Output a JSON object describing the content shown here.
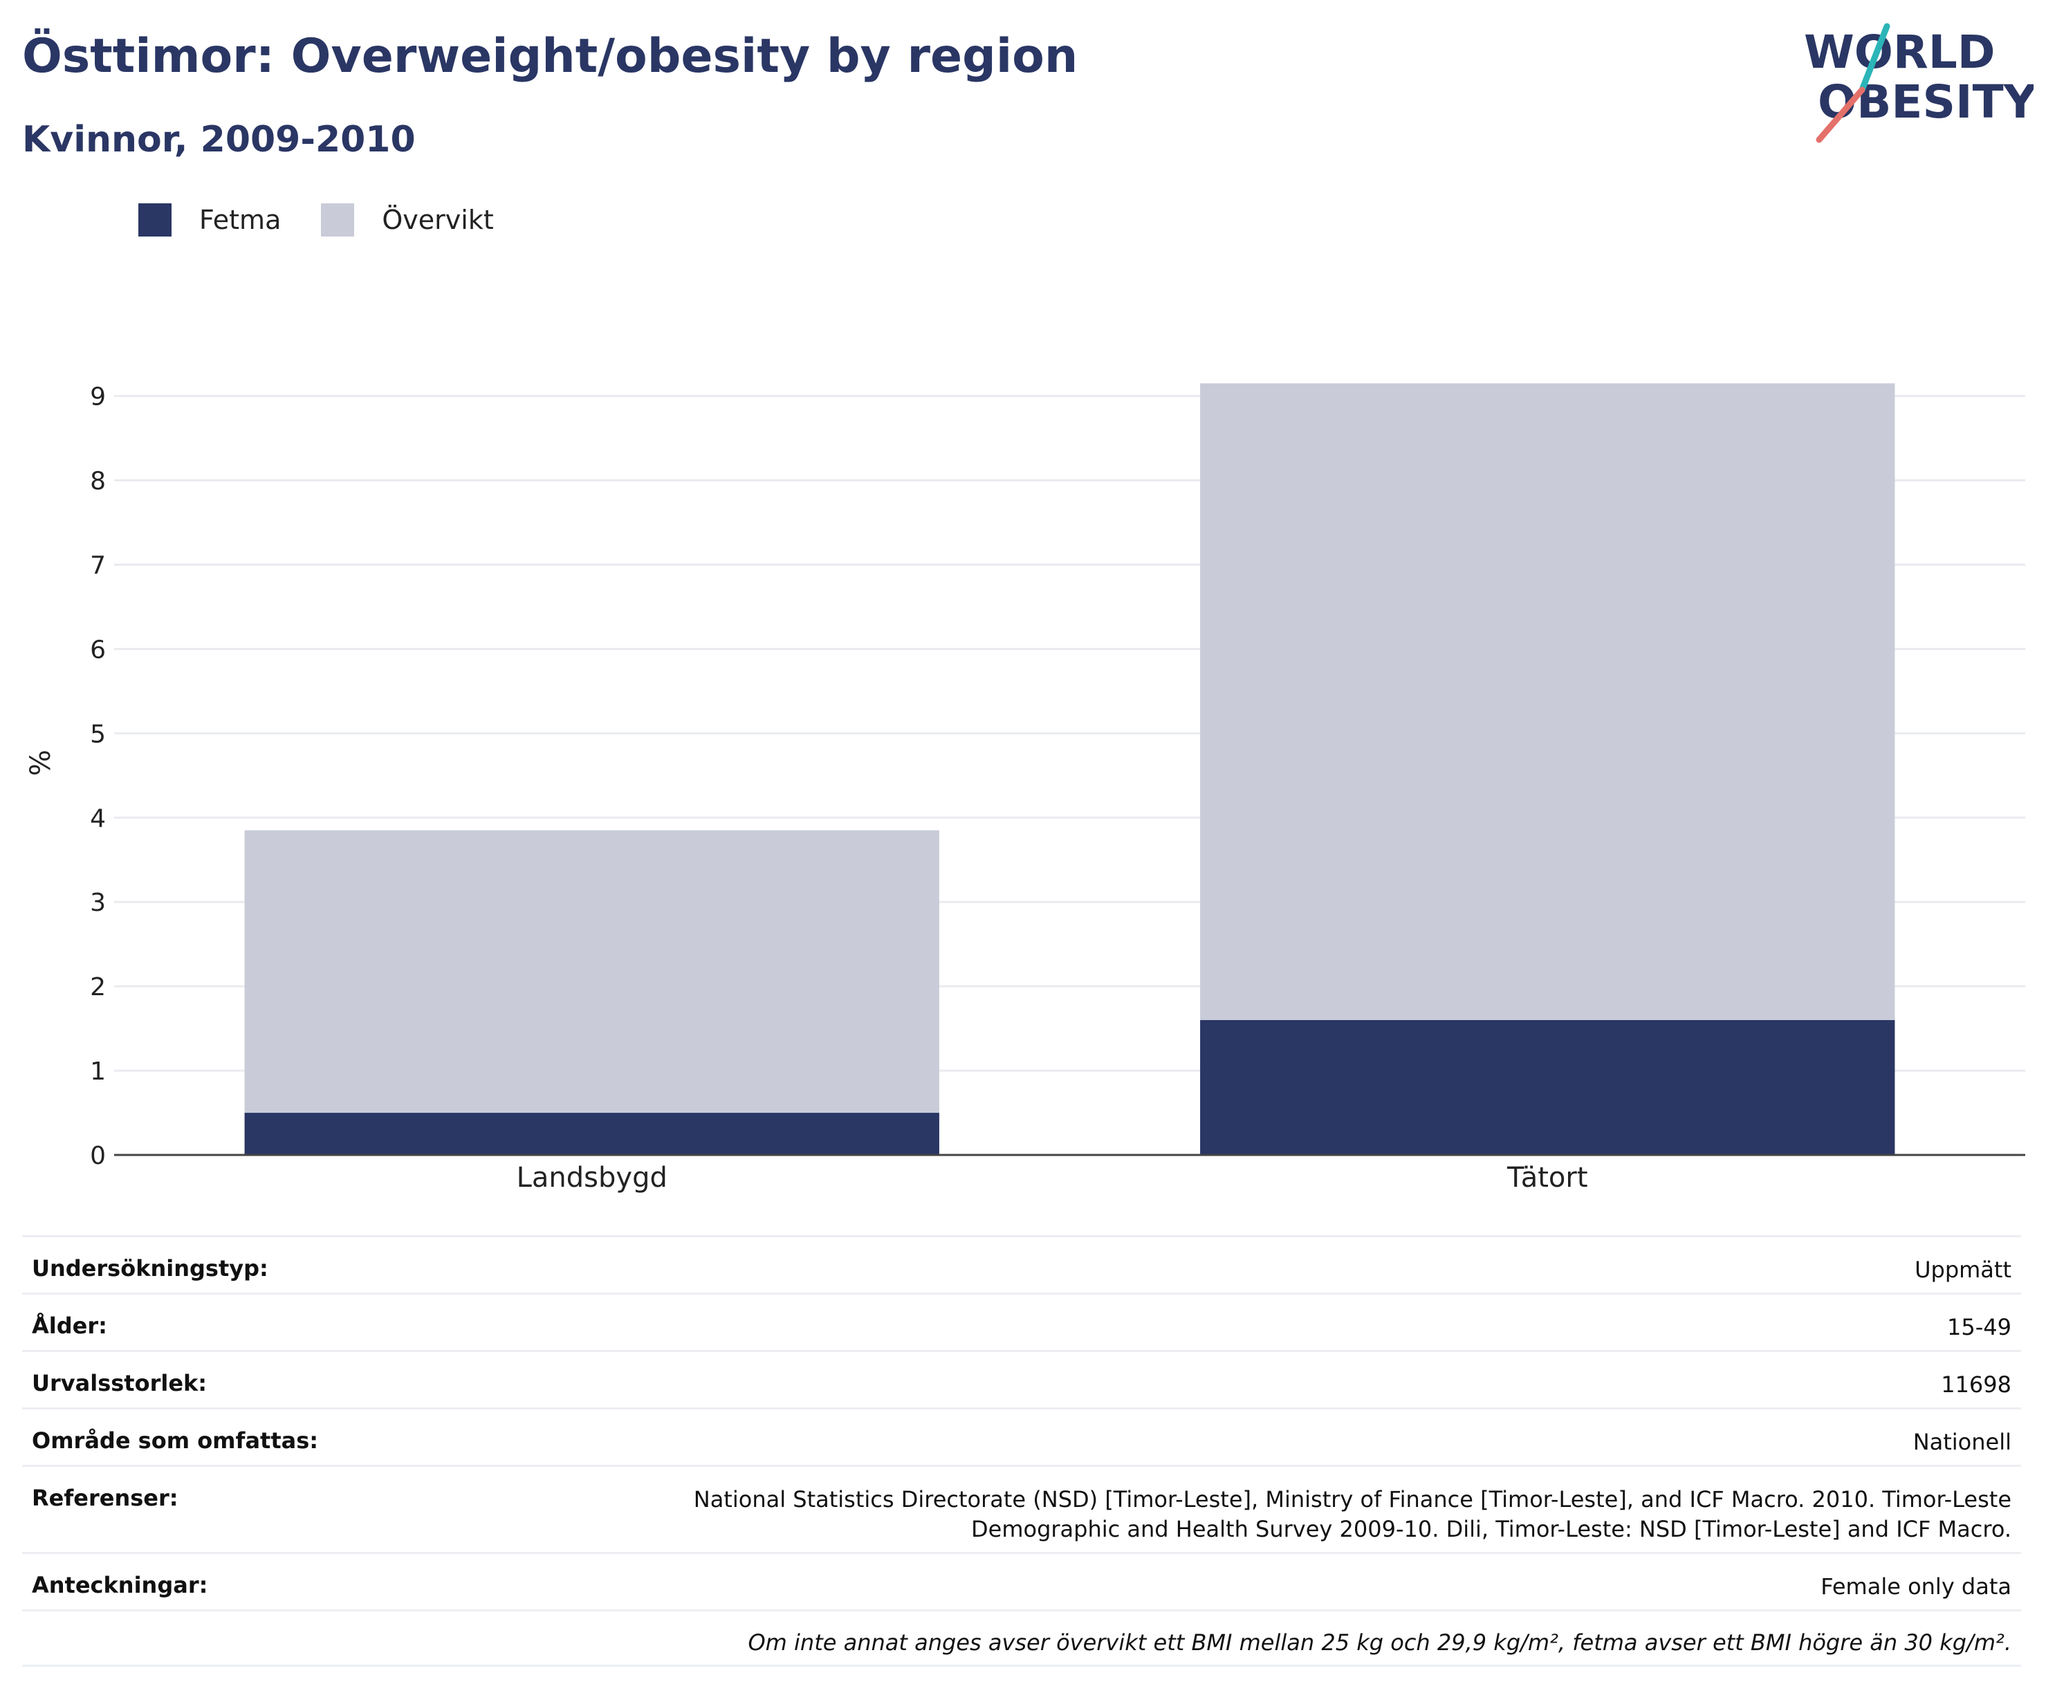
{
  "title": "Östtimor: Overweight/obesity by region",
  "subtitle": "Kvinnor, 2009-2010",
  "logo": {
    "line1": "WORLD",
    "line2": "OBESITY",
    "accent_colors": [
      "#2bb5b8",
      "#e4706a"
    ],
    "text_color": "#2a3664"
  },
  "legend": [
    {
      "label": "Fetma",
      "color": "#2a3664"
    },
    {
      "label": "Övervikt",
      "color": "#c9ccd8"
    }
  ],
  "chart_data": {
    "type": "bar",
    "stacked": true,
    "categories": [
      "Landsbygd",
      "Tätort"
    ],
    "series": [
      {
        "name": "Fetma",
        "values": [
          0.5,
          1.6
        ],
        "color": "#2a3664"
      },
      {
        "name": "Övervikt",
        "values": [
          3.35,
          7.55
        ],
        "color": "#c9ccd8"
      }
    ],
    "ylabel": "%",
    "xlabel": "",
    "ylim": [
      0,
      9.3
    ],
    "yticks": [
      0,
      1,
      2,
      3,
      4,
      5,
      6,
      7,
      8,
      9
    ],
    "grid": true,
    "legend_position": "top-left"
  },
  "info": {
    "rows": [
      {
        "label": "Undersökningstyp:",
        "value": "Uppmätt"
      },
      {
        "label": "Ålder:",
        "value": "15-49"
      },
      {
        "label": "Urvalsstorlek:",
        "value": "11698"
      },
      {
        "label": "Område som omfattas:",
        "value": "Nationell"
      },
      {
        "label": "Referenser:",
        "value": "National Statistics Directorate (NSD) [Timor-Leste], Ministry of Finance [Timor-Leste], and ICF Macro. 2010. Timor-Leste Demographic and Health Survey 2009-10. Dili, Timor-Leste: NSD [Timor-Leste] and ICF Macro."
      },
      {
        "label": "Anteckningar:",
        "value": "Female only data"
      }
    ],
    "note": "Om inte annat anges avser övervikt ett BMI mellan 25 kg och 29,9 kg/m², fetma avser ett BMI högre än 30 kg/m²."
  }
}
